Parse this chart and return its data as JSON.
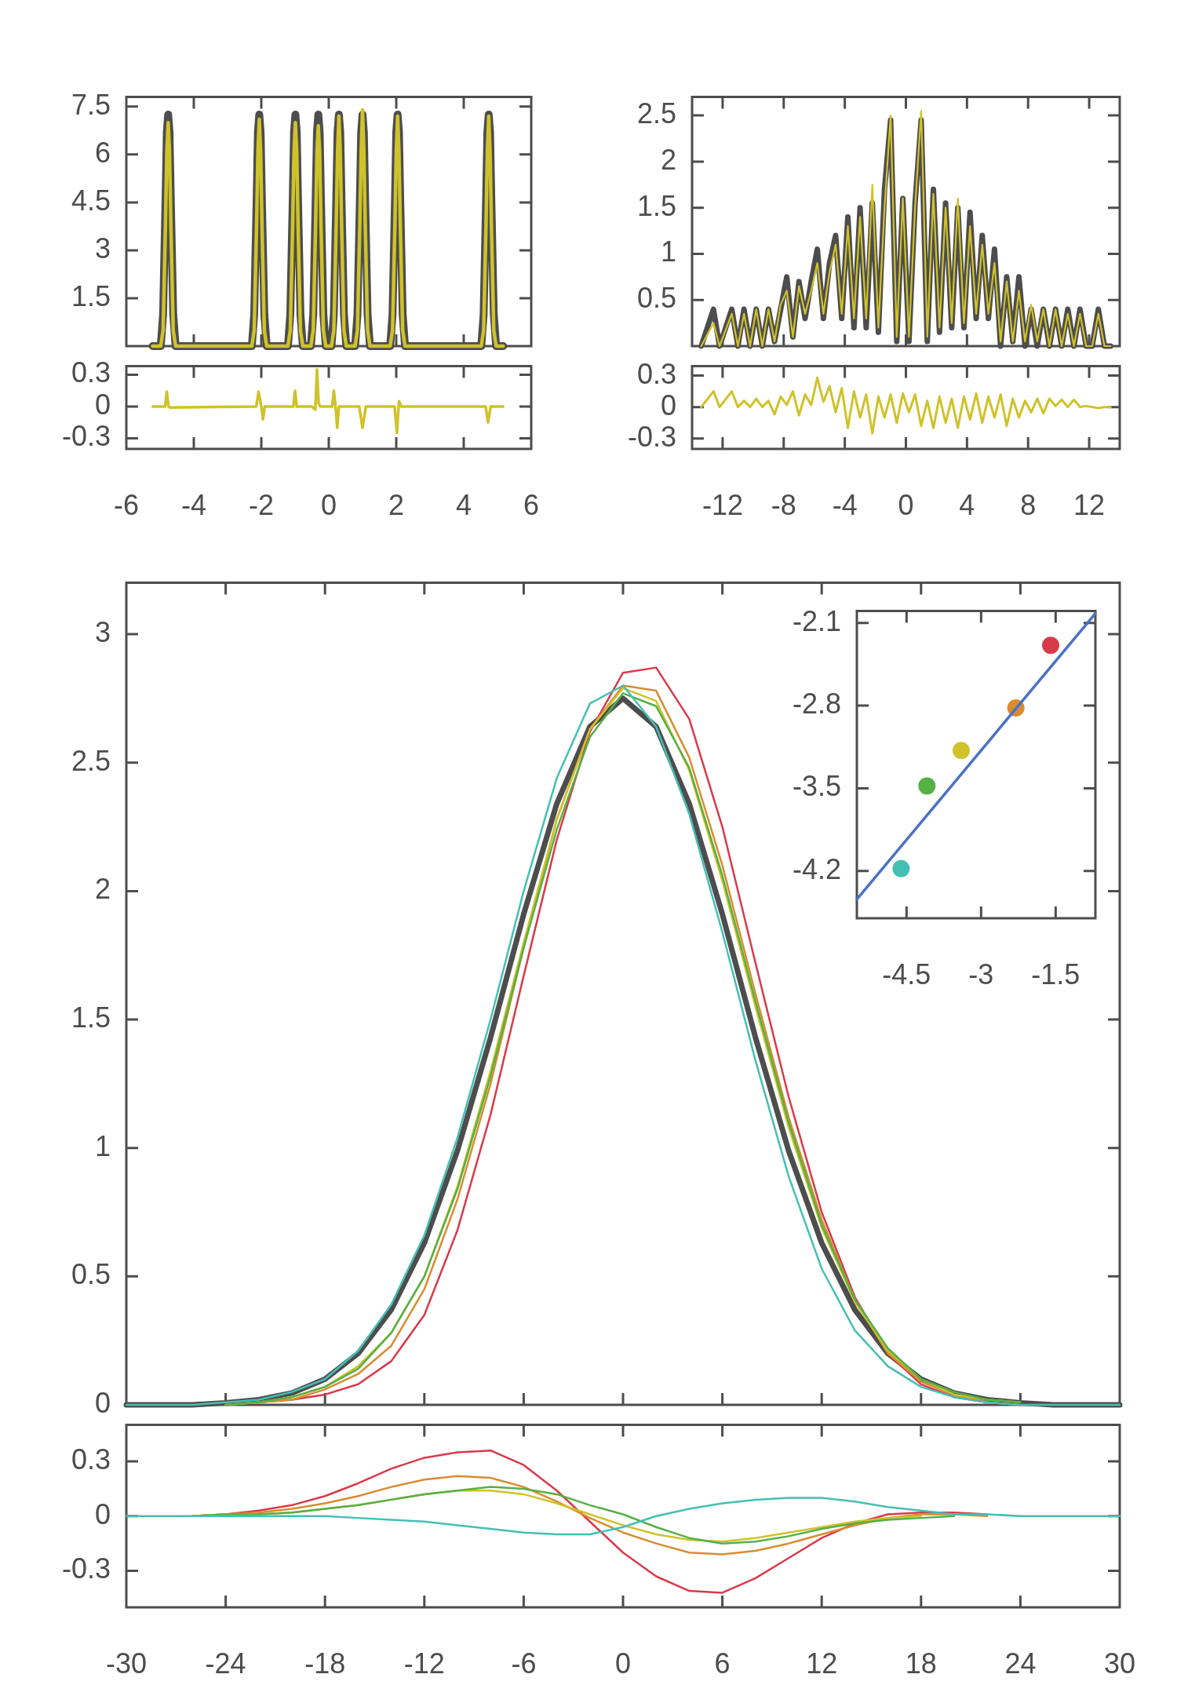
{
  "chart_data": [
    {
      "type": "line",
      "xlim": [
        -6,
        6
      ],
      "ylim": [
        0,
        7.8
      ],
      "xticks": [
        -6,
        -4,
        -2,
        0,
        2,
        4,
        6
      ],
      "yticks": [
        1.5,
        3,
        4.5,
        6,
        7.5
      ],
      "tick_labels": "y",
      "x": [
        -5.22,
        -4.98,
        -4.91,
        -4.84,
        -4.8,
        -4.76,
        -4.72,
        -4.68,
        -4.61,
        -4.54,
        -2.28,
        -2.21,
        -2.14,
        -2.1,
        -2.06,
        -2.02,
        -1.98,
        -1.91,
        -1.84,
        -1.21,
        -1.14,
        -1.07,
        -1.03,
        -0.99,
        -0.95,
        -0.91,
        -0.84,
        -0.77,
        -0.53,
        -0.46,
        -0.39,
        -0.35,
        -0.31,
        -0.27,
        -0.23,
        -0.16,
        -0.09,
        0.08,
        0.15,
        0.22,
        0.26,
        0.3,
        0.34,
        0.38,
        0.45,
        0.52,
        0.78,
        0.85,
        0.92,
        0.96,
        1,
        1.04,
        1.08,
        1.15,
        1.22,
        1.82,
        1.89,
        1.96,
        2,
        2.04,
        2.08,
        2.12,
        2.19,
        2.26,
        4.52,
        4.59,
        4.66,
        4.7,
        4.74,
        4.78,
        4.82,
        4.89,
        4.96,
        5.17
      ],
      "series": [
        {
          "color": "#4d4d4d",
          "values": [
            0,
            0,
            1,
            4.5,
            6.7,
            7.25,
            6.7,
            4.5,
            1,
            0,
            0,
            1,
            4.5,
            6.7,
            7.25,
            6.7,
            4.5,
            1,
            0,
            0,
            1,
            4.5,
            6.7,
            7.25,
            6.7,
            4.5,
            1,
            0,
            0,
            1,
            4.5,
            6.7,
            7.25,
            6.7,
            4.5,
            1,
            0,
            0,
            1,
            4.5,
            6.7,
            7.25,
            6.7,
            4.5,
            1,
            0,
            0,
            1,
            4.5,
            6.7,
            7.25,
            6.7,
            4.5,
            1,
            0,
            0,
            1,
            4.5,
            6.7,
            7.25,
            6.7,
            4.5,
            1,
            0,
            0,
            1,
            4.5,
            6.7,
            7.25,
            6.7,
            4.5,
            1,
            0,
            0
          ]
        },
        {
          "color": "#cfc22a",
          "values": [
            0,
            0,
            0.5,
            3.8,
            6.1,
            7,
            6.1,
            3.8,
            0.5,
            0,
            0,
            0.5,
            3.8,
            6.1,
            7.1,
            6.1,
            3.8,
            0.5,
            0,
            0,
            0.5,
            3.8,
            6.1,
            7,
            6.1,
            3.8,
            0.5,
            0,
            0,
            0.5,
            3.8,
            6.1,
            6.9,
            6.1,
            3.8,
            0.5,
            0,
            0,
            0.5,
            3.8,
            6.1,
            7.2,
            6.1,
            3.8,
            0.5,
            0,
            0,
            0.5,
            3.8,
            6.1,
            7.4,
            6.1,
            3.8,
            0.5,
            0,
            0,
            0.5,
            3.8,
            6.1,
            7.2,
            6.1,
            3.8,
            0.5,
            0,
            0,
            0.5,
            3.8,
            6.1,
            7.2,
            6.1,
            3.8,
            0.5,
            0,
            0
          ]
        }
      ]
    },
    {
      "type": "line",
      "xlim": [
        -6,
        6
      ],
      "ylim": [
        -0.4,
        0.38
      ],
      "xticks": [
        -6,
        -4,
        -2,
        0,
        2,
        4,
        6
      ],
      "yticks": [
        -0.3,
        0,
        0.3
      ],
      "x": [
        -5.22,
        -4.85,
        -4.8,
        -4.75,
        -4.7,
        -2.15,
        -2.08,
        -2.0,
        -1.95,
        -1.9,
        -1.05,
        -1.0,
        -0.95,
        -0.5,
        -0.4,
        -0.35,
        -0.3,
        -0.25,
        0.1,
        0.15,
        0.2,
        0.25,
        0.3,
        0.38,
        0.9,
        1.0,
        1.1,
        1.95,
        2.02,
        2.08,
        2.15,
        4.65,
        4.72,
        4.8,
        5.17
      ],
      "series": [
        {
          "color": "#cfc22a",
          "values": [
            0,
            0,
            0.14,
            0,
            -0.01,
            0,
            0.14,
            0,
            -0.12,
            0,
            0,
            0.15,
            0,
            0,
            -0.03,
            0.35,
            0.03,
            0,
            0,
            0.15,
            0,
            -0.2,
            0,
            0,
            0,
            -0.2,
            0,
            0,
            -0.25,
            0.05,
            0,
            0,
            -0.15,
            0,
            0
          ]
        }
      ]
    },
    {
      "type": "line",
      "xlim": [
        -14,
        14
      ],
      "ylim": [
        0,
        2.7
      ],
      "xticks": [
        -12,
        -8,
        -4,
        0,
        4,
        8,
        12
      ],
      "yticks": [
        0.5,
        1,
        1.5,
        2,
        2.5
      ],
      "tick_labels": "y",
      "x": [
        -13.4,
        -12.6,
        -12.2,
        -11.4,
        -11,
        -10.6,
        -10.2,
        -9.8,
        -9.4,
        -9,
        -8.6,
        -8.2,
        -7.8,
        -7.4,
        -7,
        -6.6,
        -6.2,
        -5.8,
        -5.4,
        -5,
        -4.6,
        -4.2,
        -3.8,
        -3.4,
        -3,
        -2.6,
        -2.2,
        -1.8,
        -1.4,
        -1,
        -0.6,
        -0.2,
        0.2,
        0.6,
        1,
        1.4,
        1.8,
        2.2,
        2.6,
        3,
        3.4,
        3.8,
        4.2,
        4.6,
        5,
        5.4,
        5.8,
        6.2,
        6.6,
        7,
        7.4,
        7.8,
        8.2,
        8.6,
        9,
        9.4,
        9.8,
        10.2,
        10.6,
        11,
        11.4,
        11.8,
        12.2,
        12.6,
        13,
        13.4
      ],
      "series": [
        {
          "color": "#4d4d4d",
          "values": [
            0,
            0.4,
            0,
            0.4,
            0,
            0.4,
            0,
            0.4,
            0,
            0.4,
            0.05,
            0.4,
            0.75,
            0.1,
            0.7,
            0.3,
            0.7,
            1.05,
            0.3,
            0.9,
            1.2,
            0.3,
            1.4,
            0.2,
            1.5,
            0.2,
            1.55,
            0.15,
            1.7,
            2.45,
            0.05,
            1.6,
            0.05,
            1.55,
            2.45,
            0.05,
            1.7,
            0.15,
            1.55,
            0.2,
            1.5,
            0.2,
            1.45,
            0.3,
            1.2,
            0.3,
            1.05,
            0,
            0.75,
            0.05,
            0.75,
            0,
            0.4,
            0,
            0.4,
            0,
            0.4,
            0,
            0.4,
            0,
            0.4,
            0,
            0,
            0.4,
            0,
            0
          ]
        },
        {
          "color": "#cfc22a",
          "values": [
            0,
            0.25,
            0,
            0.35,
            0,
            0.35,
            0,
            0.4,
            0,
            0.4,
            0.05,
            0.45,
            0.6,
            0.1,
            0.65,
            0.35,
            0.6,
            0.9,
            0.35,
            0.8,
            1.1,
            0.35,
            1.3,
            0.3,
            1.4,
            0.3,
            1.75,
            0.2,
            1.5,
            2.5,
            0.1,
            1.6,
            0.1,
            1.5,
            2.55,
            0.1,
            1.65,
            0.2,
            1.5,
            0.25,
            1.6,
            0.25,
            1.3,
            0.35,
            1.1,
            0.35,
            0.9,
            0.05,
            0.7,
            0.05,
            0.6,
            0.05,
            0.45,
            0.05,
            0.4,
            0,
            0.4,
            0,
            0.35,
            0,
            0.35,
            0,
            0,
            0.35,
            0,
            0
          ]
        }
      ]
    },
    {
      "type": "line",
      "xlim": [
        -14,
        14
      ],
      "ylim": [
        -0.4,
        0.39
      ],
      "xticks": [
        -12,
        -8,
        -4,
        0,
        4,
        8,
        12
      ],
      "yticks": [
        -0.3,
        0,
        0.3
      ],
      "x": [
        -13.4,
        -12.6,
        -12.2,
        -11.4,
        -11,
        -10.6,
        -10.2,
        -9.8,
        -9.4,
        -9,
        -8.6,
        -8.2,
        -7.8,
        -7.4,
        -7,
        -6.6,
        -6.2,
        -5.8,
        -5.4,
        -5,
        -4.6,
        -4.2,
        -3.8,
        -3.4,
        -3,
        -2.6,
        -2.2,
        -1.8,
        -1.4,
        -1,
        -0.6,
        -0.2,
        0.2,
        0.6,
        1,
        1.4,
        1.8,
        2.2,
        2.6,
        3,
        3.4,
        3.8,
        4.2,
        4.6,
        5,
        5.4,
        5.8,
        6.2,
        6.6,
        7,
        7.4,
        7.8,
        8.2,
        8.6,
        9,
        9.4,
        9.8,
        10.2,
        10.6,
        11,
        11.4,
        11.8,
        12.2,
        12.6,
        13,
        13.4
      ],
      "series": [
        {
          "color": "#cfc22a",
          "values": [
            0,
            0.15,
            0,
            0.15,
            0,
            0.06,
            0,
            0.08,
            0,
            0.06,
            -0.07,
            0.1,
            0.02,
            0.15,
            -0.08,
            0.12,
            0.02,
            0.28,
            0.05,
            0.2,
            -0.05,
            0.18,
            -0.2,
            0.15,
            -0.1,
            0.12,
            -0.25,
            0.1,
            -0.1,
            0.12,
            -0.15,
            0.13,
            -0.05,
            0.12,
            -0.18,
            0.06,
            -0.2,
            0.1,
            -0.15,
            0.08,
            -0.2,
            0.1,
            -0.12,
            0.13,
            -0.15,
            0.1,
            -0.1,
            0.12,
            -0.18,
            0.08,
            -0.1,
            0.06,
            -0.05,
            0.08,
            -0.06,
            0.08,
            0.01,
            0.07,
            0,
            0.07,
            0,
            0.01,
            0,
            -0.01,
            0,
            0
          ]
        }
      ]
    },
    {
      "type": "line",
      "xlim": [
        -30,
        30
      ],
      "ylim": [
        0,
        3.2
      ],
      "xticks": [
        -30,
        -24,
        -18,
        -12,
        -6,
        0,
        6,
        12,
        18,
        24,
        30
      ],
      "yticks": [
        0,
        0.5,
        1,
        1.5,
        2,
        2.5,
        3
      ],
      "tick_labels": "y",
      "x": [
        -30,
        -28,
        -26,
        -24,
        -22,
        -20,
        -18,
        -16,
        -14,
        -12,
        -10,
        -8,
        -6,
        -4,
        -2,
        0,
        2,
        4,
        6,
        8,
        10,
        12,
        14,
        16,
        18,
        20,
        22,
        24,
        26,
        28,
        30
      ],
      "series": [
        {
          "color": "#4d4d4d",
          "values": [
            0,
            0,
            0,
            0.008,
            0.02,
            0.046,
            0.1,
            0.2,
            0.37,
            0.63,
            0.99,
            1.43,
            1.91,
            2.34,
            2.64,
            2.75,
            2.64,
            2.34,
            1.91,
            1.43,
            0.99,
            0.63,
            0.37,
            0.2,
            0.1,
            0.046,
            0.02,
            0.008,
            0,
            0,
            0
          ]
        },
        {
          "color": "#d93a4a",
          "values": [
            null,
            null,
            null,
            0,
            0.01,
            0.02,
            0.04,
            0.08,
            0.17,
            0.35,
            0.68,
            1.13,
            1.67,
            2.2,
            2.62,
            2.85,
            2.87,
            2.67,
            2.25,
            1.72,
            1.2,
            0.75,
            0.42,
            0.2,
            0.08,
            0.03,
            0.01,
            null,
            null,
            null,
            null
          ]
        },
        {
          "color": "#d98c30",
          "values": [
            null,
            null,
            null,
            0,
            0.01,
            0.02,
            0.06,
            0.12,
            0.23,
            0.45,
            0.8,
            1.25,
            1.78,
            2.28,
            2.63,
            2.8,
            2.78,
            2.52,
            2.1,
            1.6,
            1.12,
            0.72,
            0.41,
            0.2,
            0.09,
            0.04,
            0.01,
            0,
            null,
            null,
            null
          ]
        },
        {
          "color": "#cfc22a",
          "values": [
            null,
            null,
            null,
            0,
            0.01,
            0.03,
            0.07,
            0.15,
            0.28,
            0.5,
            0.85,
            1.3,
            1.8,
            2.28,
            2.63,
            2.79,
            2.74,
            2.47,
            2.04,
            1.55,
            1.08,
            0.69,
            0.4,
            0.21,
            0.1,
            0.04,
            0.02,
            0.01,
            null,
            null,
            null
          ]
        },
        {
          "color": "#56b046",
          "values": [
            null,
            null,
            null,
            0,
            0.01,
            0.03,
            0.07,
            0.14,
            0.28,
            0.5,
            0.84,
            1.28,
            1.78,
            2.24,
            2.6,
            2.77,
            2.72,
            2.48,
            2.06,
            1.57,
            1.1,
            0.7,
            0.41,
            0.22,
            0.1,
            0.05,
            0.02,
            0.01,
            null,
            null,
            null
          ]
        },
        {
          "color": "#45bfb4",
          "values": [
            0,
            0,
            0,
            0.01,
            0.02,
            0.05,
            0.1,
            0.21,
            0.39,
            0.66,
            1.04,
            1.5,
            2.0,
            2.44,
            2.73,
            2.8,
            2.64,
            2.3,
            1.84,
            1.34,
            0.89,
            0.53,
            0.29,
            0.15,
            0.07,
            0.03,
            0.01,
            0,
            0,
            0,
            0
          ]
        }
      ]
    },
    {
      "type": "line",
      "xlim": [
        -30,
        30
      ],
      "ylim": [
        -0.5,
        0.5
      ],
      "xticks": [
        -30,
        -24,
        -18,
        -12,
        -6,
        0,
        6,
        12,
        18,
        24,
        30
      ],
      "yticks": [
        -0.3,
        0,
        0.3
      ],
      "x": [
        -30,
        -28,
        -26,
        -24,
        -22,
        -20,
        -18,
        -16,
        -14,
        -12,
        -10,
        -8,
        -6,
        -4,
        -2,
        0,
        2,
        4,
        6,
        8,
        10,
        12,
        14,
        16,
        18,
        20,
        22,
        24,
        26,
        28,
        30
      ],
      "series": [
        {
          "color": "#d93a4a",
          "values": [
            null,
            null,
            0,
            0.01,
            0.03,
            0.06,
            0.11,
            0.18,
            0.26,
            0.32,
            0.35,
            0.36,
            0.28,
            0.14,
            -0.03,
            -0.2,
            -0.33,
            -0.41,
            -0.42,
            -0.34,
            -0.23,
            -0.12,
            -0.04,
            0.01,
            0.02,
            0.02,
            0.01,
            null,
            null,
            null,
            null
          ]
        },
        {
          "color": "#d98c30",
          "values": [
            null,
            null,
            0,
            0.01,
            0.02,
            0.04,
            0.07,
            0.11,
            0.16,
            0.2,
            0.22,
            0.21,
            0.16,
            0.08,
            -0.01,
            -0.09,
            -0.15,
            -0.2,
            -0.21,
            -0.19,
            -0.15,
            -0.1,
            -0.05,
            -0.01,
            0.01,
            0.01,
            0,
            null,
            null,
            null,
            null
          ]
        },
        {
          "color": "#cfc22a",
          "values": [
            null,
            null,
            0,
            0.01,
            0.01,
            0.02,
            0.04,
            0.06,
            0.09,
            0.12,
            0.14,
            0.14,
            0.12,
            0.07,
            0.01,
            -0.05,
            -0.1,
            -0.13,
            -0.14,
            -0.12,
            -0.09,
            -0.06,
            -0.03,
            -0.01,
            0,
            null,
            null,
            null,
            null,
            null,
            null
          ]
        },
        {
          "color": "#56b046",
          "values": [
            null,
            null,
            0,
            0.01,
            0.01,
            0.02,
            0.04,
            0.06,
            0.09,
            0.12,
            0.14,
            0.16,
            0.15,
            0.12,
            0.06,
            0.01,
            -0.06,
            -0.12,
            -0.15,
            -0.14,
            -0.11,
            -0.07,
            -0.04,
            -0.02,
            -0.01,
            0,
            null,
            null,
            null,
            null,
            null
          ]
        },
        {
          "color": "#45bfb4",
          "values": [
            0,
            0,
            0,
            0,
            0,
            0,
            0,
            -0.01,
            -0.02,
            -0.03,
            -0.05,
            -0.07,
            -0.09,
            -0.1,
            -0.1,
            -0.06,
            0,
            0.04,
            0.07,
            0.09,
            0.1,
            0.1,
            0.08,
            0.05,
            0.03,
            0.01,
            0.01,
            0,
            0,
            0,
            0
          ]
        }
      ]
    },
    {
      "type": "scatter",
      "xlim": [
        -5.5,
        -0.7
      ],
      "ylim": [
        -4.6,
        -2.0
      ],
      "xticks": [
        -4.5,
        -3,
        -1.5
      ],
      "yticks": [
        -4.2,
        -3.5,
        -2.8,
        -2.1
      ],
      "series": [
        {
          "marker": "circle",
          "x": [
            -1.6,
            -2.3,
            -3.4,
            -4.09,
            -4.61
          ],
          "values": [
            -2.29,
            -2.82,
            -3.18,
            -3.48,
            -4.18
          ],
          "colors": [
            "#d93a4a",
            "#d98c30",
            "#cfc22a",
            "#56b046",
            "#45bfb4"
          ]
        },
        {
          "type": "line",
          "x": [
            -5.5,
            -0.7
          ],
          "values": [
            -4.44,
            -2.02
          ],
          "color": "#4a72c4"
        }
      ]
    }
  ]
}
